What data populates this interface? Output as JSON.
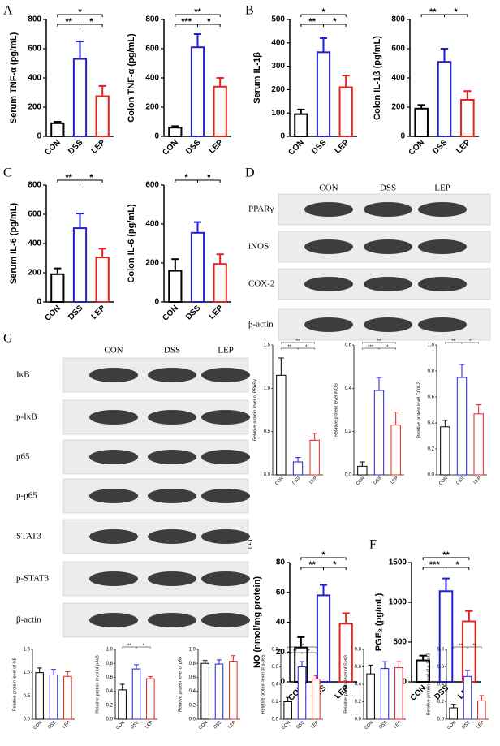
{
  "panel_labels": [
    "A",
    "B",
    "C",
    "D",
    "G",
    "E",
    "F"
  ],
  "blots": [
    {
      "lanes": [
        "CON",
        "DSS",
        "LEP"
      ],
      "rows": [
        "PPARγ",
        "iNOS",
        "COX-2",
        "β-actin"
      ]
    },
    {
      "lanes": [
        "CON",
        "DSS",
        "LEP"
      ],
      "rows": [
        "IκB",
        "p-IκB",
        "p65",
        "p-p65",
        "STAT3",
        "p-STAT3",
        "β-actin"
      ]
    }
  ],
  "chart_data": [
    {
      "type": "bar",
      "y_label": "Serum TNF-α (pg/mL)",
      "categories": [
        "CON",
        "DSS",
        "LEP"
      ],
      "colors": [
        "#000000",
        "#1f1fd6",
        "#e8201e"
      ],
      "values": [
        90,
        530,
        275
      ],
      "errors": [
        10,
        120,
        70
      ],
      "ylim": [
        0,
        800
      ],
      "yticks": [
        0,
        200,
        400,
        600,
        800
      ],
      "annotations": [
        {
          "label": "*",
          "pair": [
            0,
            2
          ]
        },
        {
          "label": "**",
          "pair": [
            0,
            1
          ]
        },
        {
          "label": "*",
          "pair": [
            1,
            2
          ]
        }
      ]
    },
    {
      "type": "bar",
      "y_label": "Colon TNF-α (pg/mL)",
      "categories": [
        "CON",
        "DSS",
        "LEP"
      ],
      "colors": [
        "#000000",
        "#1f1fd6",
        "#e8201e"
      ],
      "values": [
        60,
        610,
        340
      ],
      "errors": [
        10,
        90,
        60
      ],
      "ylim": [
        0,
        800
      ],
      "yticks": [
        0,
        200,
        400,
        600,
        800
      ],
      "annotations": [
        {
          "label": "**",
          "pair": [
            0,
            2
          ]
        },
        {
          "label": "***",
          "pair": [
            0,
            1
          ]
        },
        {
          "label": "*",
          "pair": [
            1,
            2
          ]
        }
      ]
    },
    {
      "type": "bar",
      "y_label": "Serum IL-1β",
      "categories": [
        "CON",
        "DSS",
        "LEP"
      ],
      "colors": [
        "#000000",
        "#1f1fd6",
        "#e8201e"
      ],
      "values": [
        95,
        360,
        210
      ],
      "errors": [
        20,
        60,
        50
      ],
      "ylim": [
        0,
        500
      ],
      "yticks": [
        0,
        100,
        200,
        300,
        400,
        500
      ],
      "annotations": [
        {
          "label": "*",
          "pair": [
            0,
            2
          ]
        },
        {
          "label": "**",
          "pair": [
            0,
            1
          ]
        },
        {
          "label": "*",
          "pair": [
            1,
            2
          ]
        }
      ]
    },
    {
      "type": "bar",
      "y_label": "Colon IL-1β (pg/mL)",
      "categories": [
        "CON",
        "DSS",
        "LEP"
      ],
      "colors": [
        "#000000",
        "#1f1fd6",
        "#e8201e"
      ],
      "values": [
        190,
        510,
        250
      ],
      "errors": [
        25,
        90,
        60
      ],
      "ylim": [
        0,
        800
      ],
      "yticks": [
        0,
        200,
        400,
        600,
        800
      ],
      "annotations": [
        {
          "label": "**",
          "pair": [
            0,
            1
          ]
        },
        {
          "label": "*",
          "pair": [
            1,
            2
          ]
        }
      ]
    },
    {
      "type": "bar",
      "y_label": "Serum IL-6 (pg/mL)",
      "categories": [
        "CON",
        "DSS",
        "LEP"
      ],
      "colors": [
        "#000000",
        "#1f1fd6",
        "#e8201e"
      ],
      "values": [
        190,
        505,
        305
      ],
      "errors": [
        40,
        100,
        60
      ],
      "ylim": [
        0,
        800
      ],
      "yticks": [
        0,
        200,
        400,
        600,
        800
      ],
      "annotations": [
        {
          "label": "**",
          "pair": [
            0,
            1
          ]
        },
        {
          "label": "*",
          "pair": [
            1,
            2
          ]
        }
      ]
    },
    {
      "type": "bar",
      "y_label": "Colon IL-6 (pg/mL)",
      "categories": [
        "CON",
        "DSS",
        "LEP"
      ],
      "colors": [
        "#000000",
        "#1f1fd6",
        "#e8201e"
      ],
      "values": [
        160,
        355,
        195
      ],
      "errors": [
        60,
        55,
        50
      ],
      "ylim": [
        0,
        600
      ],
      "yticks": [
        0,
        200,
        400,
        600
      ],
      "annotations": [
        {
          "label": "*",
          "pair": [
            0,
            1
          ]
        },
        {
          "label": "*",
          "pair": [
            1,
            2
          ]
        }
      ]
    },
    {
      "type": "bar",
      "y_label": "Relative protein level of PPARγ",
      "categories": [
        "CON",
        "DSS",
        "LEP"
      ],
      "colors": [
        "#000000",
        "#1f1fd6",
        "#e8201e"
      ],
      "values": [
        1.15,
        0.15,
        0.4
      ],
      "errors": [
        0.2,
        0.05,
        0.08
      ],
      "ylim": [
        0,
        1.5
      ],
      "yticks": [
        {
          "value": 0,
          "label": "0.0"
        },
        0.5,
        {
          "value": 1,
          "label": "1.0"
        },
        1.5
      ],
      "annotations": [
        {
          "label": "**",
          "pair": [
            0,
            2
          ]
        },
        {
          "label": "**",
          "pair": [
            0,
            1
          ]
        },
        {
          "label": "*",
          "pair": [
            1,
            2
          ]
        }
      ]
    },
    {
      "type": "bar",
      "y_label": "Relative protein level iNOS",
      "categories": [
        "CON",
        "DSS",
        "LEP"
      ],
      "colors": [
        "#000000",
        "#1f1fd6",
        "#e8201e"
      ],
      "values": [
        0.04,
        0.39,
        0.23
      ],
      "errors": [
        0.02,
        0.06,
        0.06
      ],
      "ylim": [
        0,
        0.6
      ],
      "yticks": [
        {
          "value": 0,
          "label": "0.0"
        },
        0.2,
        0.4,
        0.6
      ],
      "annotations": [
        {
          "label": "**",
          "pair": [
            0,
            2
          ]
        },
        {
          "label": "***",
          "pair": [
            0,
            1
          ]
        },
        {
          "label": "*",
          "pair": [
            1,
            2
          ]
        }
      ]
    },
    {
      "type": "bar",
      "y_label": "Relative protein level COX-2",
      "categories": [
        "CON",
        "DSS",
        "LEP"
      ],
      "colors": [
        "#000000",
        "#1f1fd6",
        "#e8201e"
      ],
      "values": [
        0.37,
        0.75,
        0.47
      ],
      "errors": [
        0.05,
        0.1,
        0.07
      ],
      "ylim": [
        0,
        1
      ],
      "yticks": [
        {
          "value": 0,
          "label": "0.0"
        },
        0.2,
        0.4,
        0.6,
        0.8,
        {
          "value": 1,
          "label": "1.0"
        }
      ],
      "annotations": [
        {
          "label": "**",
          "pair": [
            0,
            1
          ]
        },
        {
          "label": "*",
          "pair": [
            1,
            2
          ]
        }
      ]
    },
    {
      "type": "bar",
      "y_label": "NO (nmol/mg protein)",
      "categories": [
        "CON",
        "DSS",
        "LEP"
      ],
      "colors": [
        "#000000",
        "#1f1fd6",
        "#e8201e"
      ],
      "values": [
        23,
        58,
        39
      ],
      "errors": [
        7,
        7,
        7
      ],
      "ylim": [
        0,
        80
      ],
      "yticks": [
        0,
        20,
        40,
        60,
        80
      ],
      "annotations": [
        {
          "label": "*",
          "pair": [
            0,
            2
          ]
        },
        {
          "label": "**",
          "pair": [
            0,
            1
          ]
        },
        {
          "label": "*",
          "pair": [
            1,
            2
          ]
        }
      ]
    },
    {
      "type": "bar",
      "y_label": "PGE₂ (pg/mL)",
      "categories": [
        "CON",
        "DSS",
        "LEP"
      ],
      "colors": [
        "#000000",
        "#1f1fd6",
        "#e8201e"
      ],
      "values": [
        270,
        1140,
        760
      ],
      "errors": [
        60,
        160,
        130
      ],
      "ylim": [
        0,
        1500
      ],
      "yticks": [
        0,
        500,
        1000,
        1500
      ],
      "annotations": [
        {
          "label": "**",
          "pair": [
            0,
            2
          ]
        },
        {
          "label": "***",
          "pair": [
            0,
            1
          ]
        },
        {
          "label": "*",
          "pair": [
            1,
            2
          ]
        }
      ]
    },
    {
      "type": "bar",
      "y_label": "Relative protein level of IκB",
      "categories": [
        "CON",
        "DSS",
        "LEP"
      ],
      "colors": [
        "#000000",
        "#1f1fd6",
        "#e8201e"
      ],
      "values": [
        1.0,
        0.95,
        0.92
      ],
      "errors": [
        0.1,
        0.12,
        0.1
      ],
      "ylim": [
        0,
        1.5
      ],
      "yticks": [
        {
          "value": 0,
          "label": "0.0"
        },
        0.5,
        {
          "value": 1,
          "label": "1.0"
        },
        1.5
      ],
      "annotations": []
    },
    {
      "type": "bar",
      "y_label": "Relative protein level of p-IκB",
      "categories": [
        "CON",
        "DSS",
        "LEP"
      ],
      "colors": [
        "#000000",
        "#1f1fd6",
        "#e8201e"
      ],
      "values": [
        0.42,
        0.72,
        0.58
      ],
      "errors": [
        0.08,
        0.06,
        0.03
      ],
      "ylim": [
        0,
        1
      ],
      "yticks": [
        {
          "value": 0,
          "label": "0.0"
        },
        0.2,
        0.4,
        0.6,
        0.8,
        {
          "value": 1,
          "label": "1.0"
        }
      ],
      "annotations": [
        {
          "label": "**",
          "pair": [
            0,
            1
          ]
        },
        {
          "label": "*",
          "pair": [
            1,
            2
          ]
        }
      ]
    },
    {
      "type": "bar",
      "y_label": "Relative protein level of p65",
      "categories": [
        "CON",
        "DSS",
        "LEP"
      ],
      "colors": [
        "#000000",
        "#1f1fd6",
        "#e8201e"
      ],
      "values": [
        0.8,
        0.79,
        0.83
      ],
      "errors": [
        0.04,
        0.06,
        0.08
      ],
      "ylim": [
        0,
        1
      ],
      "yticks": [
        {
          "value": 0,
          "label": "0.0"
        },
        0.2,
        0.4,
        0.6,
        0.8,
        {
          "value": 1,
          "label": "1.0"
        }
      ],
      "annotations": []
    },
    {
      "type": "bar",
      "y_label": "Relative protein level of p-p65",
      "categories": [
        "CON",
        "DSS",
        "LEP"
      ],
      "colors": [
        "#000000",
        "#1f1fd6",
        "#e8201e"
      ],
      "values": [
        0.2,
        0.6,
        0.46
      ],
      "errors": [
        0.05,
        0.06,
        0.04
      ],
      "ylim": [
        0,
        0.8
      ],
      "yticks": [
        {
          "value": 0,
          "label": "0.0"
        },
        0.2,
        0.4,
        0.6,
        0.8
      ],
      "annotations": [
        {
          "label": "**",
          "pair": [
            0,
            2
          ]
        },
        {
          "label": "**",
          "pair": [
            0,
            1
          ]
        },
        {
          "label": "*",
          "pair": [
            1,
            2
          ]
        }
      ]
    },
    {
      "type": "bar",
      "y_label": "Relative protein level of Stat3",
      "categories": [
        "CON",
        "DSS",
        "LEP"
      ],
      "colors": [
        "#000000",
        "#1f1fd6",
        "#e8201e"
      ],
      "values": [
        0.52,
        0.58,
        0.59
      ],
      "errors": [
        0.1,
        0.08,
        0.07
      ],
      "ylim": [
        0,
        0.8
      ],
      "yticks": [
        {
          "value": 0,
          "label": "0.0"
        },
        0.2,
        0.4,
        0.6,
        0.8
      ],
      "annotations": []
    },
    {
      "type": "bar",
      "y_label": "Relative protein level of p-Stat3",
      "categories": [
        "CON",
        "DSS",
        "LEP"
      ],
      "colors": [
        "#000000",
        "#1f1fd6",
        "#e8201e"
      ],
      "values": [
        0.13,
        0.49,
        0.21
      ],
      "errors": [
        0.04,
        0.07,
        0.06
      ],
      "ylim": [
        0,
        0.8
      ],
      "yticks": [
        {
          "value": 0,
          "label": "0.0"
        },
        0.2,
        0.4,
        0.6,
        0.8
      ],
      "annotations": [
        {
          "label": "**",
          "pair": [
            0,
            1
          ]
        },
        {
          "label": "**",
          "pair": [
            1,
            2
          ]
        }
      ]
    }
  ]
}
